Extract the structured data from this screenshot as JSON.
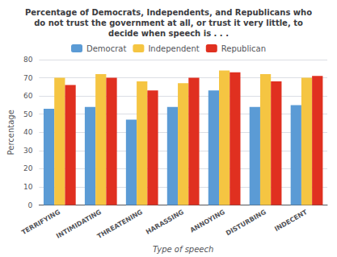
{
  "chart_data": {
    "type": "bar",
    "title": "Percentage of Democrats, Independents, and Republicans who\ndo not trust the government at all, or trust it very little, to\ndecide when speech is . . .",
    "xlabel": "Type of speech",
    "ylabel": "Percentage",
    "categories": [
      "TERRIFYING",
      "INTIMIDATING",
      "THREATENING",
      "HARASSING",
      "ANNOYING",
      "DISTURBING",
      "INDECENT"
    ],
    "series": [
      {
        "name": "Democrat",
        "color": "#5b9bd5",
        "values": [
          53,
          54,
          47,
          54,
          63,
          54,
          55
        ]
      },
      {
        "name": "Independent",
        "color": "#f5c542",
        "values": [
          70,
          72,
          68,
          67,
          74,
          72,
          70
        ]
      },
      {
        "name": "Republican",
        "color": "#e03020",
        "values": [
          66,
          70,
          63,
          70,
          73,
          68,
          71
        ]
      }
    ],
    "ylim": [
      0,
      80
    ],
    "yticks": [
      0,
      10,
      20,
      30,
      40,
      50,
      60,
      70,
      80
    ],
    "grid": true,
    "legend": "top"
  }
}
